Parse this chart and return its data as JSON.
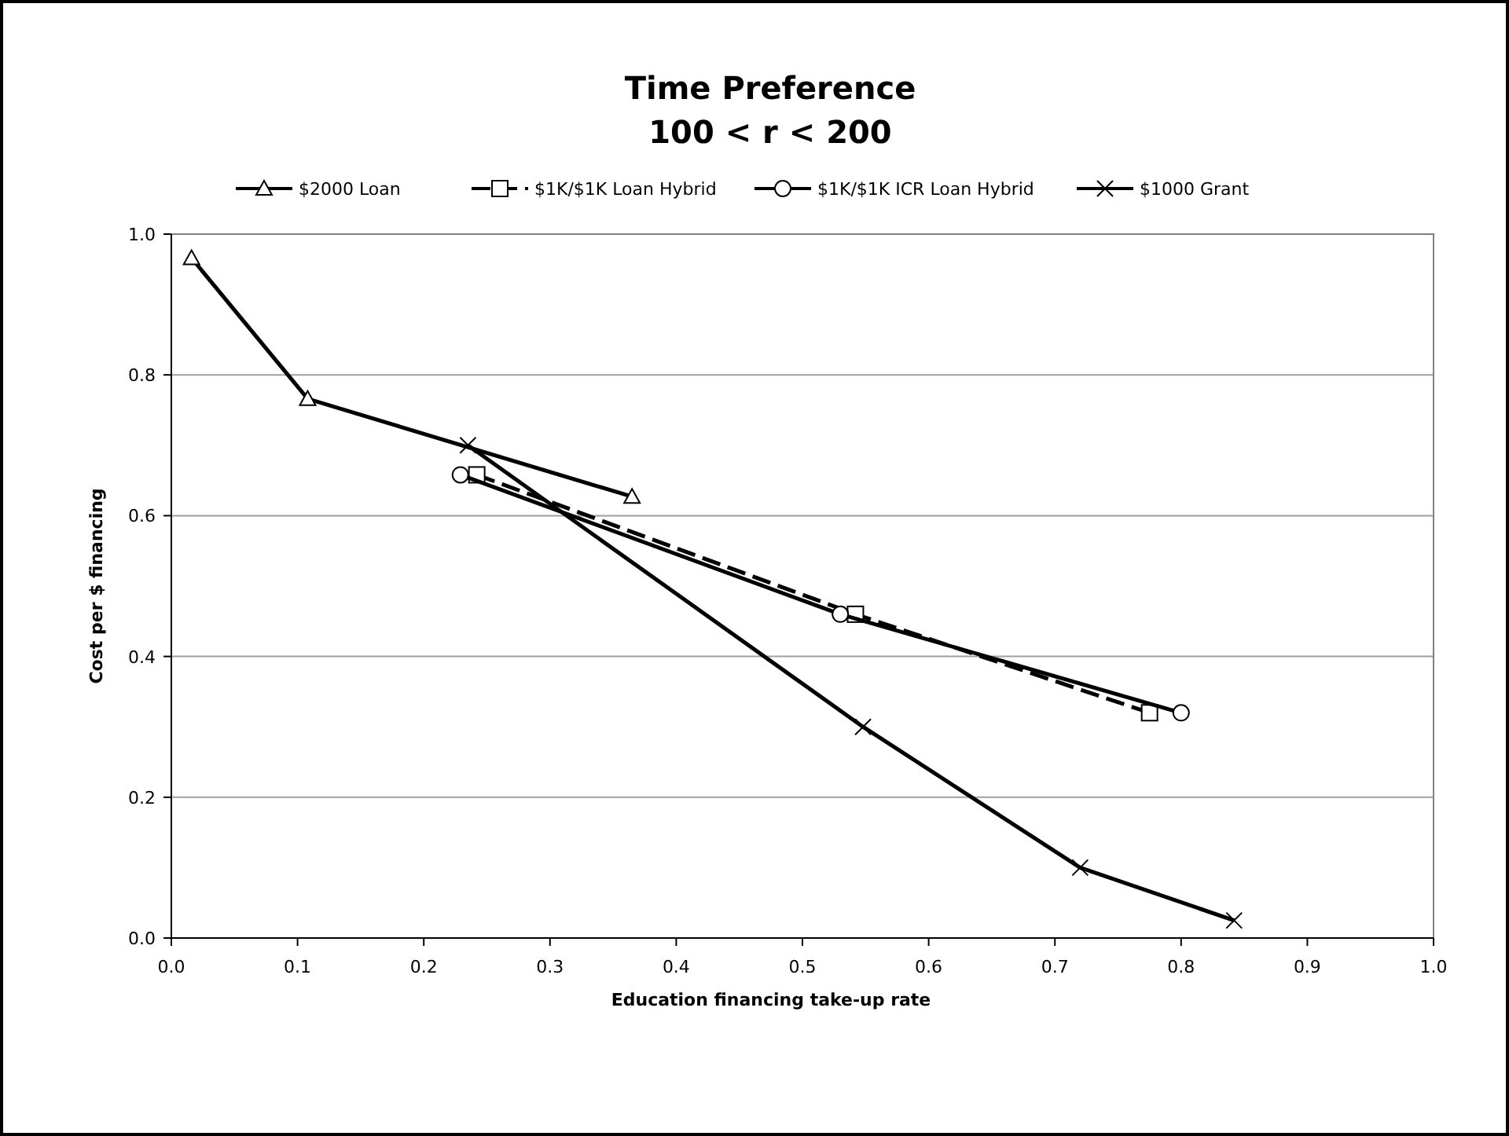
{
  "chart_data": {
    "type": "line",
    "title": "Time Preference",
    "subtitle": "100 < r < 200",
    "xlabel": "Education financing take-up rate",
    "ylabel": "Cost per $ financing",
    "xlim": [
      0,
      1
    ],
    "xticks": [
      {
        "value": 0,
        "label": "0.0"
      },
      0.1,
      0.2,
      0.3,
      0.4,
      0.5,
      0.6,
      0.7,
      0.8,
      0.9,
      {
        "value": 1,
        "label": "1.0"
      }
    ],
    "ylim": [
      0,
      1
    ],
    "yticks": [
      {
        "value": 0,
        "label": "0.0"
      },
      0.2,
      0.4,
      0.6,
      0.8,
      {
        "value": 1,
        "label": "1.0"
      }
    ],
    "grid": "y",
    "legend": "top",
    "series": [
      {
        "name": "$2000 Loan",
        "color": "#000000",
        "marker": "triangle",
        "line_style": "solid",
        "x": [
          0.016,
          0.108,
          0.365
        ],
        "values": [
          0.966,
          0.766,
          0.627
        ]
      },
      {
        "name": "$1K/$1K Loan Hybrid",
        "color": "#000000",
        "marker": "square",
        "line_style": "dashed",
        "x": [
          0.242,
          0.542,
          0.775
        ],
        "values": [
          0.658,
          0.46,
          0.32
        ]
      },
      {
        "name": "$1K/$1K ICR Loan Hybrid",
        "color": "#000000",
        "marker": "circle",
        "line_style": "solid",
        "x": [
          0.229,
          0.53,
          0.8
        ],
        "values": [
          0.658,
          0.46,
          0.32
        ]
      },
      {
        "name": "$1000 Grant",
        "color": "#000000",
        "marker": "cross",
        "line_style": "solid",
        "x": [
          0.235,
          0.548,
          0.72,
          0.842
        ],
        "values": [
          0.7,
          0.3,
          0.1,
          0.025
        ]
      }
    ]
  }
}
